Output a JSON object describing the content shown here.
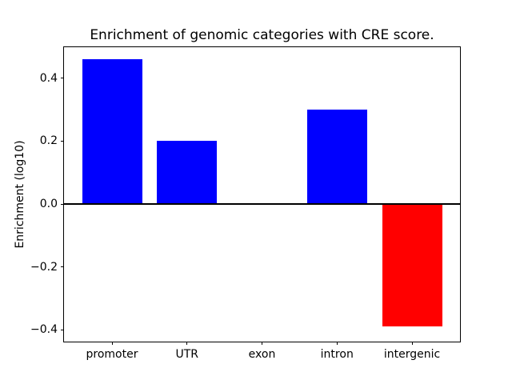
{
  "chart_data": {
    "type": "bar",
    "title": "Enrichment of genomic categories with CRE score.",
    "xlabel": "",
    "ylabel": "Enrichment (log10)",
    "categories": [
      "promoter",
      "UTR",
      "exon",
      "intron",
      "intergenic"
    ],
    "values": [
      0.46,
      0.2,
      0.0,
      0.3,
      -0.39
    ],
    "bar_colors": [
      "#0000ff",
      "#0000ff",
      "#0000ff",
      "#0000ff",
      "#ff0000"
    ],
    "positive_color": "#0000ff",
    "negative_color": "#ff0000",
    "ylim": [
      -0.437,
      0.498
    ],
    "yticks": [
      -0.4,
      -0.2,
      0.0,
      0.2,
      0.4
    ],
    "ytick_labels": [
      "−0.4",
      "−0.2",
      "0.0",
      "0.2",
      "0.4"
    ],
    "grid": false,
    "legend": null,
    "zero_line": true,
    "axis_color": "#000000",
    "background_color": "#ffffff"
  }
}
